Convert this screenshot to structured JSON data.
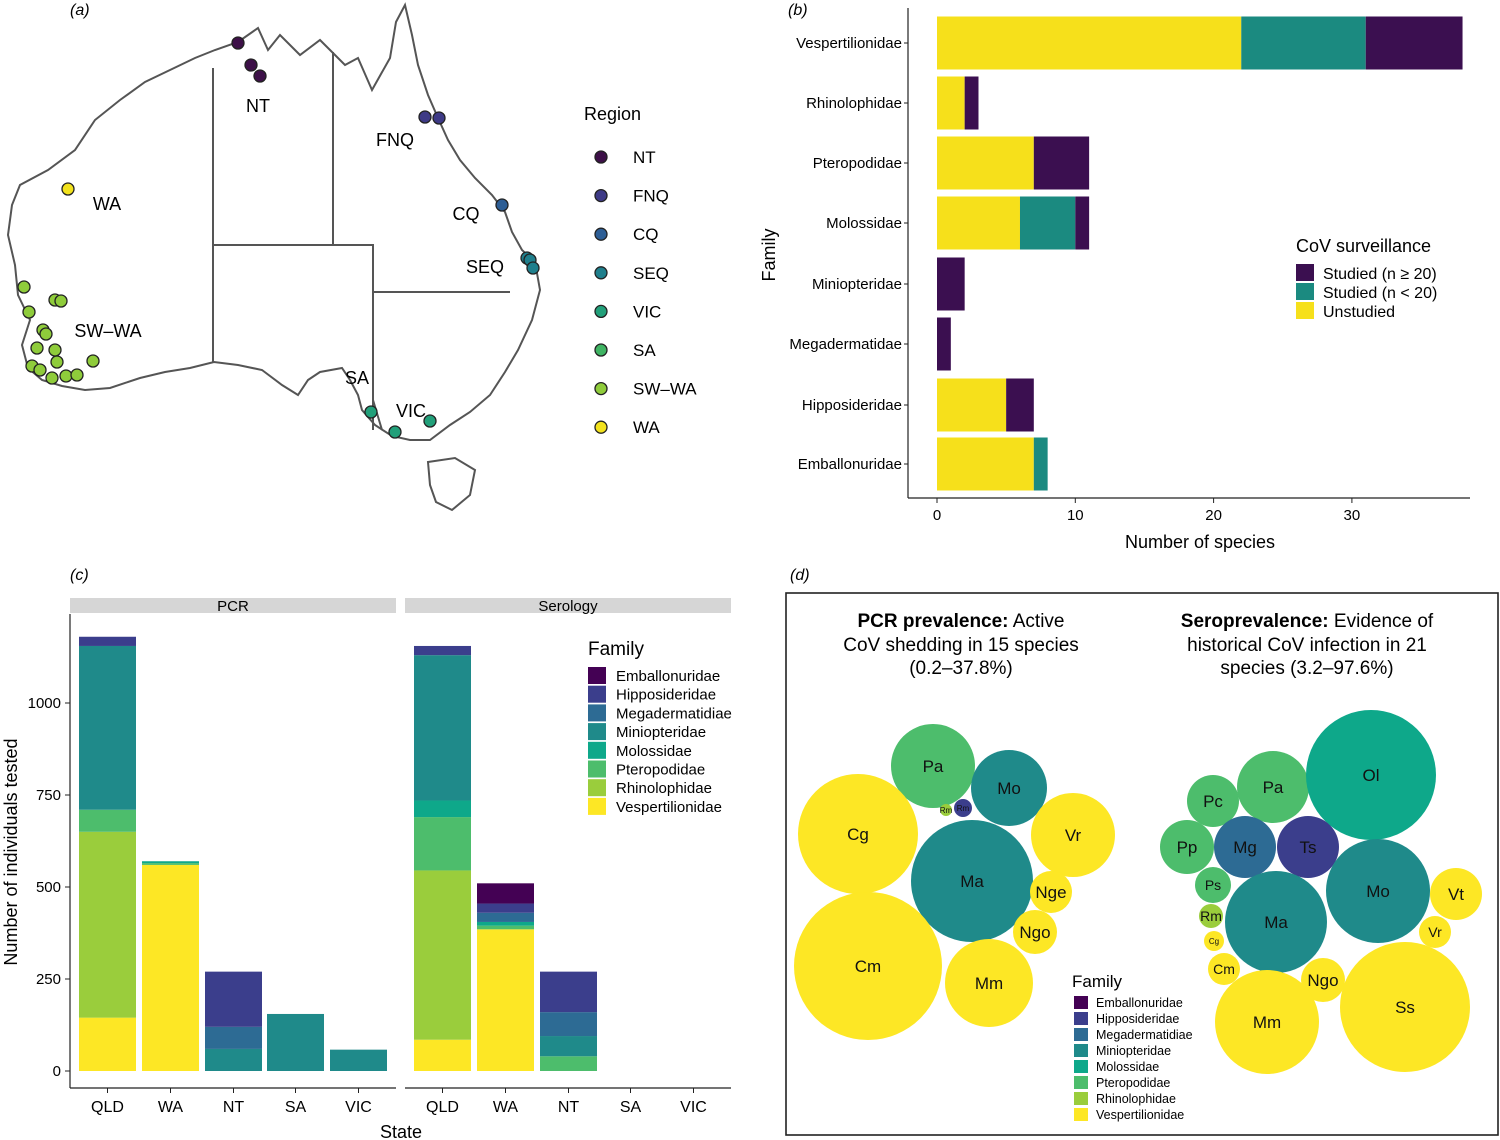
{
  "panels": {
    "a": "(a)",
    "b": "(b)",
    "c": "(c)",
    "d": "(d)"
  },
  "colors": {
    "Emballonuridae": "#440154",
    "Hipposideridae": "#3b3e8c",
    "Megadermatidiae": "#2d6b94",
    "Miniopteridae": "#1f8a8a",
    "Molossidae": "#0ea88a",
    "Pteropodidae": "#4dbd6c",
    "Rhinolophidae": "#9acd3c",
    "Vespertilionidae": "#fde725",
    "studied_ge20": "#3b0f50",
    "studied_lt20": "#1b8a80",
    "unstudied": "#f6e01b",
    "map_NT": "#3d1048",
    "map_FNQ": "#3e3a86",
    "map_CQ": "#2d5e95",
    "map_SEQ": "#1f7f8c",
    "map_VIC": "#22a07a",
    "map_SA": "#3fb463",
    "map_SWWA": "#8fcc3b",
    "map_WA": "#f2e21d"
  },
  "map": {
    "legend_title": "Region",
    "region_labels": [
      {
        "id": "NT",
        "text": "NT"
      },
      {
        "id": "FNQ",
        "text": "FNQ"
      },
      {
        "id": "CQ",
        "text": "CQ"
      },
      {
        "id": "SEQ",
        "text": "SEQ"
      },
      {
        "id": "VIC",
        "text": "VIC"
      },
      {
        "id": "SA",
        "text": "SA"
      },
      {
        "id": "SWWA",
        "text": "SW–WA"
      },
      {
        "id": "WA",
        "text": "WA"
      }
    ],
    "legend": [
      "NT",
      "FNQ",
      "CQ",
      "SEQ",
      "VIC",
      "SA",
      "SW–WA",
      "WA"
    ]
  },
  "chart_data": [
    {
      "panel": "b",
      "type": "bar",
      "orientation": "horizontal",
      "stacked": true,
      "xlabel": "Number of species",
      "ylabel": "Family",
      "xlim": [
        0,
        38
      ],
      "xticks": [
        0,
        10,
        20,
        30
      ],
      "legend_title": "CoV surveillance",
      "legend_position": "right",
      "categories": [
        "Vespertilionidae",
        "Rhinolophidae",
        "Pteropodidae",
        "Molossidae",
        "Miniopteridae",
        "Megadermatidae",
        "Hipposideridae",
        "Emballonuridae"
      ],
      "series": [
        {
          "name": "Unstudied",
          "values": [
            22,
            2,
            7,
            6,
            0,
            0,
            5,
            7
          ]
        },
        {
          "name": "Studied (n < 20)",
          "values": [
            9,
            0,
            0,
            4,
            0,
            0,
            0,
            1
          ]
        },
        {
          "name": "Studied (n ≥ 20)",
          "values": [
            7,
            1,
            4,
            1,
            2,
            1,
            2,
            0
          ]
        }
      ]
    },
    {
      "panel": "c",
      "type": "bar",
      "stacked": true,
      "xlabel": "State",
      "ylabel": "Number of individuals tested",
      "ylim": [
        0,
        1250
      ],
      "yticks": [
        0,
        250,
        500,
        750,
        1000
      ],
      "facets": [
        "PCR",
        "Serology"
      ],
      "categories": [
        "QLD",
        "WA",
        "NT",
        "SA",
        "VIC"
      ],
      "legend_title": "Family",
      "legend_position": "right",
      "families": [
        "Emballonuridae",
        "Hipposideridae",
        "Megadermatidiae",
        "Miniopteridae",
        "Molossidae",
        "Pteropodidae",
        "Rhinolophidae",
        "Vespertilionidae"
      ],
      "PCR": [
        {
          "Vespertilionidae": 145,
          "Rhinolophidae": 505,
          "Pteropodidae": 60,
          "Miniopteridae": 445,
          "Hipposideridae": 25
        },
        {
          "Vespertilionidae": 560,
          "Molossidae": 5,
          "Pteropodidae": 5
        },
        {
          "Megadermatidiae": 60,
          "Miniopteridae": 60,
          "Hipposideridae": 150
        },
        {
          "Miniopteridae": 155
        },
        {
          "Miniopteridae": 58
        }
      ],
      "Serology": [
        {
          "Vespertilionidae": 85,
          "Rhinolophidae": 460,
          "Pteropodidae": 145,
          "Molossidae": 45,
          "Miniopteridae": 395,
          "Hipposideridae": 25
        },
        {
          "Vespertilionidae": 385,
          "Pteropodidae": 10,
          "Molossidae": 10,
          "Megadermatidiae": 25,
          "Hipposideridae": 25,
          "Emballonuridae": 55
        },
        {
          "Pteropodidae": 40,
          "Miniopteridae": 55,
          "Megadermatidiae": 65,
          "Hipposideridae": 110
        },
        {},
        {}
      ]
    }
  ],
  "bubbles": {
    "pcr_title_bold": "PCR prevalence:",
    "pcr_title_rest1": " Active",
    "pcr_title_line2": "CoV shedding in 15 species",
    "pcr_title_line3": "(0.2–37.8%)",
    "sero_title_bold": "Seroprevalence:",
    "sero_title_rest1": " Evidence of",
    "sero_title_line2": "historical CoV infection in 21",
    "sero_title_line3": "species (3.2–97.6%)",
    "legend_title": "Family",
    "pcr": [
      {
        "label": "Pa",
        "family": "Pteropodidae"
      },
      {
        "label": "Mo",
        "family": "Miniopteridae"
      },
      {
        "label": "Rm",
        "family": "Rhinolophidae"
      },
      {
        "label": "Rm",
        "family": "Hipposideridae"
      },
      {
        "label": "Cg",
        "family": "Vespertilionidae"
      },
      {
        "label": "Vr",
        "family": "Vespertilionidae"
      },
      {
        "label": "Ma",
        "family": "Miniopteridae"
      },
      {
        "label": "Nge",
        "family": "Vespertilionidae"
      },
      {
        "label": "Ngo",
        "family": "Vespertilionidae"
      },
      {
        "label": "Cm",
        "family": "Vespertilionidae"
      },
      {
        "label": "Mm",
        "family": "Vespertilionidae"
      }
    ],
    "sero": [
      {
        "label": "Pc",
        "family": "Pteropodidae"
      },
      {
        "label": "Pa",
        "family": "Pteropodidae"
      },
      {
        "label": "Ol",
        "family": "Molossidae"
      },
      {
        "label": "Pp",
        "family": "Pteropodidae"
      },
      {
        "label": "Mg",
        "family": "Megadermatidiae"
      },
      {
        "label": "Ts",
        "family": "Hipposideridae"
      },
      {
        "label": "Ps",
        "family": "Pteropodidae"
      },
      {
        "label": "Mo",
        "family": "Miniopteridae"
      },
      {
        "label": "Vt",
        "family": "Vespertilionidae"
      },
      {
        "label": "Rm",
        "family": "Rhinolophidae"
      },
      {
        "label": "Ma",
        "family": "Miniopteridae"
      },
      {
        "label": "Vr",
        "family": "Vespertilionidae"
      },
      {
        "label": "Cg",
        "family": "Vespertilionidae"
      },
      {
        "label": "Cm",
        "family": "Vespertilionidae"
      },
      {
        "label": "Ngo",
        "family": "Vespertilionidae"
      },
      {
        "label": "Mm",
        "family": "Vespertilionidae"
      },
      {
        "label": "Ss",
        "family": "Vespertilionidae"
      }
    ]
  }
}
